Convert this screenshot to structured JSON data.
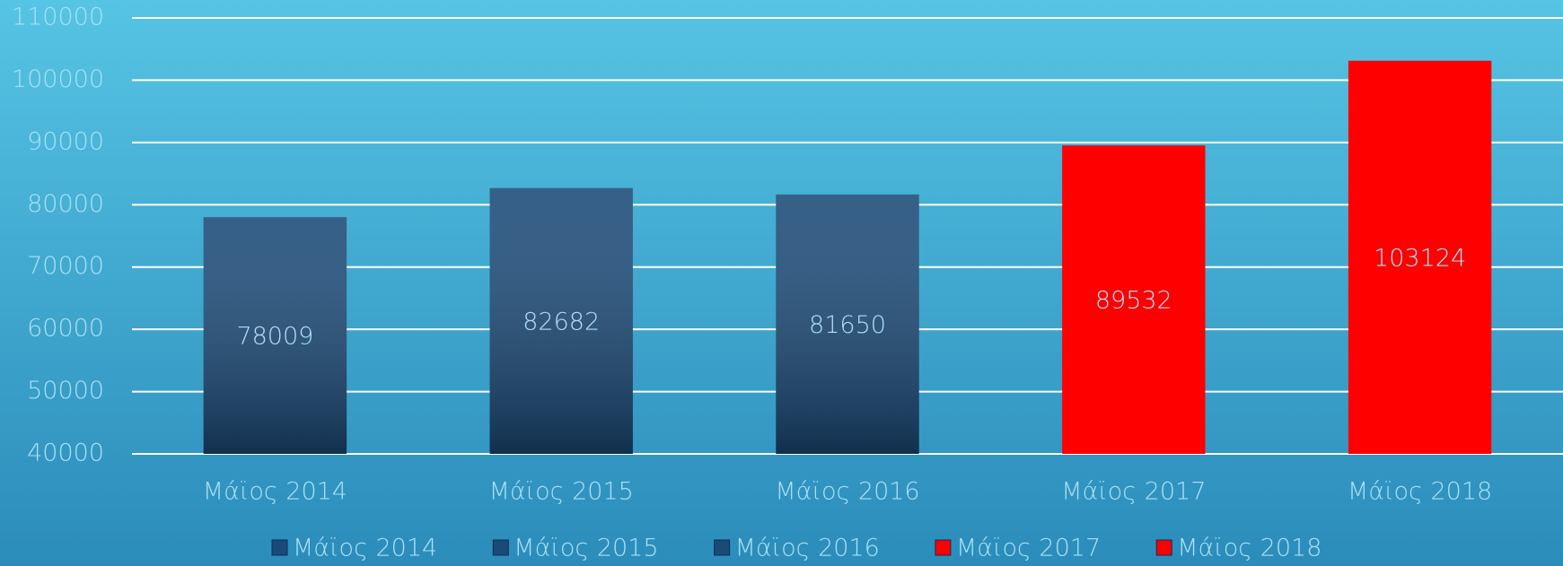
{
  "chart_data": {
    "type": "bar",
    "categories": [
      "Μάϊος 2014",
      "Μάϊος 2015",
      "Μάϊος 2016",
      "Μάϊος 2017",
      "Μάϊος 2018"
    ],
    "values": [
      78009,
      82682,
      81650,
      89532,
      103124
    ],
    "colors": [
      "#1a4a78",
      "#1a4a78",
      "#1a4a78",
      "#ff0000",
      "#ff0000"
    ],
    "ylim": [
      40000,
      110000
    ],
    "yticks": [
      40000,
      50000,
      60000,
      70000,
      80000,
      90000,
      100000,
      110000
    ],
    "grid": true,
    "legend": "bottom"
  }
}
